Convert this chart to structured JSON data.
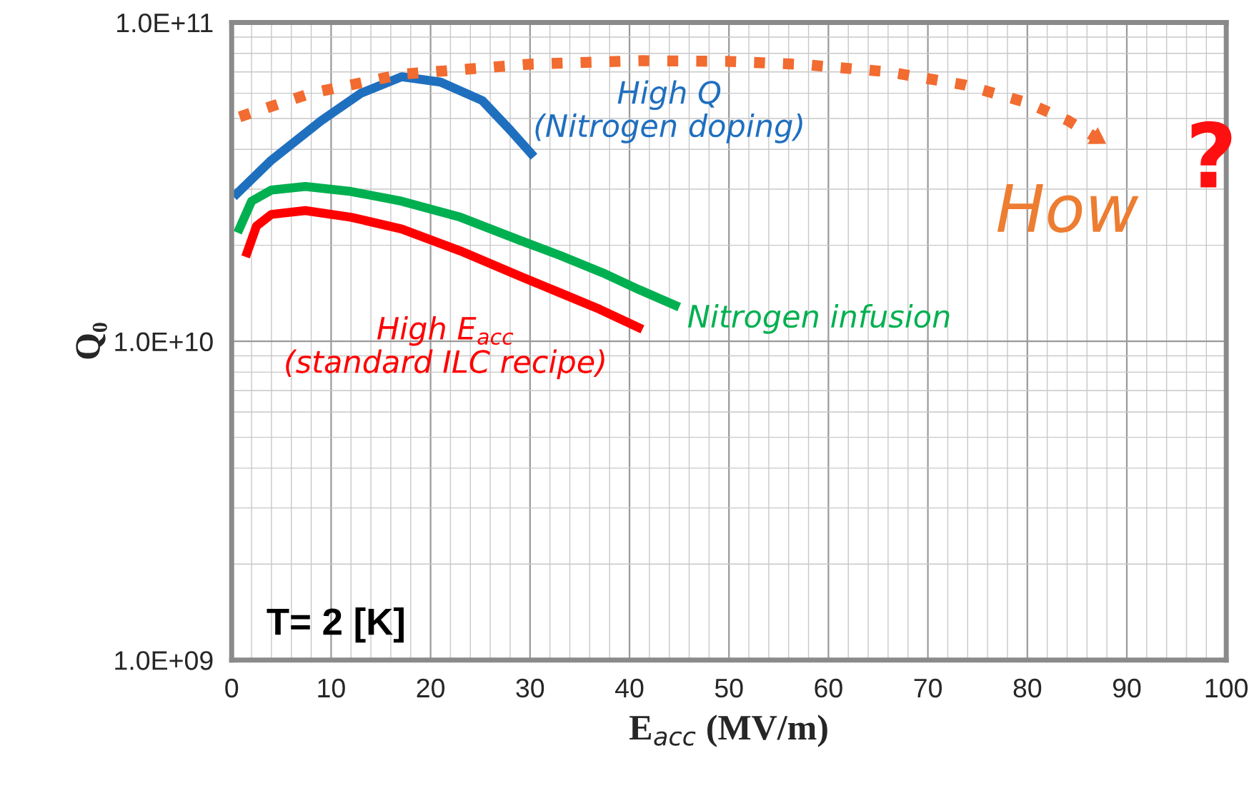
{
  "chart_data": {
    "type": "line",
    "xlabel": "E$_{acc}$ (MV/m)",
    "ylabel": "Q₀",
    "log": "y",
    "xlim": [
      0,
      100
    ],
    "xticks": [
      0,
      10,
      20,
      30,
      40,
      50,
      60,
      70,
      80,
      90,
      100
    ],
    "ylim": [
      1000000000.0,
      100000000000.0
    ],
    "yticks": [
      {
        "value": 1000000000.0,
        "label": "1.0E+09"
      },
      {
        "value": 10000000000.0,
        "label": "1.0E+10"
      },
      {
        "value": 100000000000.0,
        "label": "1.0E+11"
      }
    ],
    "grid": true,
    "line_style": "solid",
    "marker": "none",
    "series": [
      {
        "name": "High Q\n(Nitrogen doping)",
        "color": "#1f6fbf",
        "x": [
          0.2,
          4,
          9,
          13,
          17.1,
          21,
          25.2,
          28,
          30.4
        ],
        "values": [
          28400000000.0,
          37000000000.0,
          49200000000.0,
          60000000000.0,
          67600000000.0,
          65000000000.0,
          56900000000.0,
          46000000000.0,
          37900000000.0
        ]
      },
      {
        "name": "Nitrogen infusion",
        "color": "#00b050",
        "x": [
          0.6,
          2,
          4,
          7.4,
          12,
          17.1,
          23,
          29.2,
          33,
          37.3,
          41,
          45
        ],
        "values": [
          21900000000.0,
          27500000000.0,
          29800000000.0,
          30600000000.0,
          29500000000.0,
          27500000000.0,
          24500000000.0,
          20600000000.0,
          18600000000.0,
          16400000000.0,
          14500000000.0,
          12800000000.0
        ]
      },
      {
        "name": "High E$_{acc}$\n(standard ILC recipe)",
        "color": "#ff0000",
        "x": [
          1.4,
          2.5,
          4,
          7.4,
          12,
          17.1,
          23,
          29.2,
          33,
          37,
          41.3
        ],
        "values": [
          18400000000.0,
          23000000000.0,
          25000000000.0,
          25700000000.0,
          24500000000.0,
          22500000000.0,
          19200000000.0,
          15900000000.0,
          14200000000.0,
          12600000000.0,
          10900000000.0
        ]
      },
      {
        "color": "#f26b30",
        "line_style": "dotted",
        "x": [
          0.8,
          8,
          17.1,
          30,
          41.3,
          50,
          57.5,
          66,
          73.6,
          80,
          84.1,
          88.1
        ],
        "values": [
          50600000000.0,
          60000000000.0,
          68800000000.0,
          74000000000.0,
          75900000000.0,
          75500000000.0,
          73800000000.0,
          70000000000.0,
          63800000000.0,
          56000000000.0,
          49200000000.0,
          41300000000.0
        ]
      }
    ],
    "annotations": [
      "How",
      "?",
      "T= 2 [K]"
    ]
  }
}
